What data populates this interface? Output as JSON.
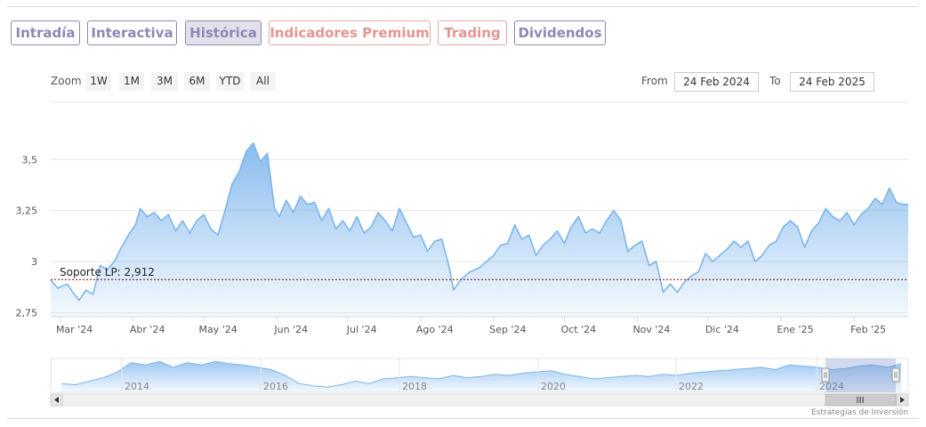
{
  "tabs": [
    {
      "label": "Intradía",
      "style": "normal"
    },
    {
      "label": "Interactiva",
      "style": "normal"
    },
    {
      "label": "Histórica",
      "style": "active"
    },
    {
      "label": "Indicadores Premium",
      "style": "premium"
    },
    {
      "label": "Trading",
      "style": "premium"
    },
    {
      "label": "Dividendos",
      "style": "normal"
    }
  ],
  "range_selector": {
    "zoom_label": "Zoom",
    "buttons": [
      "1W",
      "1M",
      "3M",
      "6M",
      "YTD",
      "All"
    ],
    "from_label": "From",
    "from_value": "24 Feb 2024",
    "to_label": "To",
    "to_value": "24 Feb 2025"
  },
  "colors": {
    "line": "#7cb5ec",
    "area_top": "#7cb5ec",
    "support_line": "#8b0000",
    "tab_border": "#8b86b5",
    "tab_premium": "#e59590"
  },
  "chart_data": {
    "type": "area",
    "title": "",
    "xlabel": "",
    "ylabel": "",
    "ylim": [
      2.73,
      3.78
    ],
    "y_ticks": [
      2.75,
      3,
      3.25,
      3.5
    ],
    "y_tick_labels": [
      "2,75",
      "3",
      "3,25",
      "3,5"
    ],
    "x_range": [
      "2024-02-26",
      "2025-02-24"
    ],
    "x_ticks": [
      {
        "date": "2024-03-01",
        "label": "Mar '24"
      },
      {
        "date": "2024-04-01",
        "label": "Abr '24"
      },
      {
        "date": "2024-05-01",
        "label": "May '24"
      },
      {
        "date": "2024-06-01",
        "label": "Jun '24"
      },
      {
        "date": "2024-07-01",
        "label": "Jul '24"
      },
      {
        "date": "2024-08-01",
        "label": "Ago '24"
      },
      {
        "date": "2024-09-01",
        "label": "Sep '24"
      },
      {
        "date": "2024-10-01",
        "label": "Oct '24"
      },
      {
        "date": "2024-11-01",
        "label": "Nov '24"
      },
      {
        "date": "2024-12-01",
        "label": "Dic '24"
      },
      {
        "date": "2025-01-01",
        "label": "Ene '25"
      },
      {
        "date": "2025-02-01",
        "label": "Feb '25"
      }
    ],
    "grid": true,
    "legend": "none",
    "annotation": {
      "label": "Soporte LP: 2,912",
      "value": 2.912
    },
    "series": [
      {
        "points": [
          [
            "2024-02-26",
            2.91
          ],
          [
            "2024-02-29",
            2.87
          ],
          [
            "2024-03-04",
            2.89
          ],
          [
            "2024-03-07",
            2.84
          ],
          [
            "2024-03-09",
            2.81
          ],
          [
            "2024-03-12",
            2.86
          ],
          [
            "2024-03-15",
            2.84
          ],
          [
            "2024-03-18",
            2.98
          ],
          [
            "2024-03-21",
            2.96
          ],
          [
            "2024-03-24",
            3.0
          ],
          [
            "2024-03-27",
            3.07
          ],
          [
            "2024-03-30",
            3.13
          ],
          [
            "2024-04-02",
            3.18
          ],
          [
            "2024-04-04",
            3.26
          ],
          [
            "2024-04-07",
            3.22
          ],
          [
            "2024-04-10",
            3.24
          ],
          [
            "2024-04-13",
            3.2
          ],
          [
            "2024-04-16",
            3.23
          ],
          [
            "2024-04-19",
            3.15
          ],
          [
            "2024-04-22",
            3.2
          ],
          [
            "2024-04-25",
            3.14
          ],
          [
            "2024-04-28",
            3.2
          ],
          [
            "2024-05-01",
            3.23
          ],
          [
            "2024-05-04",
            3.16
          ],
          [
            "2024-05-07",
            3.13
          ],
          [
            "2024-05-10",
            3.25
          ],
          [
            "2024-05-13",
            3.38
          ],
          [
            "2024-05-16",
            3.44
          ],
          [
            "2024-05-19",
            3.54
          ],
          [
            "2024-05-22",
            3.58
          ],
          [
            "2024-05-25",
            3.49
          ],
          [
            "2024-05-28",
            3.53
          ],
          [
            "2024-05-31",
            3.26
          ],
          [
            "2024-06-02",
            3.22
          ],
          [
            "2024-06-05",
            3.3
          ],
          [
            "2024-06-08",
            3.24
          ],
          [
            "2024-06-11",
            3.32
          ],
          [
            "2024-06-14",
            3.28
          ],
          [
            "2024-06-17",
            3.29
          ],
          [
            "2024-06-20",
            3.2
          ],
          [
            "2024-06-23",
            3.26
          ],
          [
            "2024-06-26",
            3.16
          ],
          [
            "2024-06-29",
            3.2
          ],
          [
            "2024-07-02",
            3.15
          ],
          [
            "2024-07-05",
            3.22
          ],
          [
            "2024-07-08",
            3.14
          ],
          [
            "2024-07-11",
            3.17
          ],
          [
            "2024-07-14",
            3.24
          ],
          [
            "2024-07-17",
            3.2
          ],
          [
            "2024-07-20",
            3.15
          ],
          [
            "2024-07-23",
            3.26
          ],
          [
            "2024-07-26",
            3.19
          ],
          [
            "2024-07-29",
            3.12
          ],
          [
            "2024-08-01",
            3.13
          ],
          [
            "2024-08-04",
            3.05
          ],
          [
            "2024-08-07",
            3.1
          ],
          [
            "2024-08-10",
            3.11
          ],
          [
            "2024-08-13",
            2.98
          ],
          [
            "2024-08-15",
            2.86
          ],
          [
            "2024-08-18",
            2.91
          ],
          [
            "2024-08-22",
            2.95
          ],
          [
            "2024-08-26",
            2.97
          ],
          [
            "2024-08-29",
            3.0
          ],
          [
            "2024-09-01",
            3.03
          ],
          [
            "2024-09-04",
            3.08
          ],
          [
            "2024-09-07",
            3.09
          ],
          [
            "2024-09-10",
            3.18
          ],
          [
            "2024-09-13",
            3.11
          ],
          [
            "2024-09-16",
            3.13
          ],
          [
            "2024-09-19",
            3.03
          ],
          [
            "2024-09-22",
            3.08
          ],
          [
            "2024-09-25",
            3.11
          ],
          [
            "2024-09-28",
            3.15
          ],
          [
            "2024-10-01",
            3.09
          ],
          [
            "2024-10-04",
            3.17
          ],
          [
            "2024-10-07",
            3.22
          ],
          [
            "2024-10-10",
            3.14
          ],
          [
            "2024-10-13",
            3.16
          ],
          [
            "2024-10-16",
            3.14
          ],
          [
            "2024-10-19",
            3.2
          ],
          [
            "2024-10-22",
            3.25
          ],
          [
            "2024-10-25",
            3.2
          ],
          [
            "2024-10-28",
            3.05
          ],
          [
            "2024-10-31",
            3.08
          ],
          [
            "2024-11-03",
            3.1
          ],
          [
            "2024-11-06",
            2.98
          ],
          [
            "2024-11-09",
            3.0
          ],
          [
            "2024-11-12",
            2.85
          ],
          [
            "2024-11-15",
            2.89
          ],
          [
            "2024-11-18",
            2.85
          ],
          [
            "2024-11-21",
            2.9
          ],
          [
            "2024-11-24",
            2.93
          ],
          [
            "2024-11-27",
            2.95
          ],
          [
            "2024-11-30",
            3.04
          ],
          [
            "2024-12-03",
            3.0
          ],
          [
            "2024-12-06",
            3.03
          ],
          [
            "2024-12-09",
            3.06
          ],
          [
            "2024-12-12",
            3.1
          ],
          [
            "2024-12-15",
            3.07
          ],
          [
            "2024-12-18",
            3.1
          ],
          [
            "2024-12-21",
            3.0
          ],
          [
            "2024-12-24",
            3.03
          ],
          [
            "2024-12-27",
            3.08
          ],
          [
            "2024-12-30",
            3.1
          ],
          [
            "2025-01-02",
            3.17
          ],
          [
            "2025-01-05",
            3.2
          ],
          [
            "2025-01-08",
            3.17
          ],
          [
            "2025-01-11",
            3.07
          ],
          [
            "2025-01-14",
            3.15
          ],
          [
            "2025-01-17",
            3.19
          ],
          [
            "2025-01-20",
            3.26
          ],
          [
            "2025-01-23",
            3.22
          ],
          [
            "2025-01-26",
            3.2
          ],
          [
            "2025-01-29",
            3.24
          ],
          [
            "2025-02-01",
            3.18
          ],
          [
            "2025-02-04",
            3.23
          ],
          [
            "2025-02-07",
            3.26
          ],
          [
            "2025-02-10",
            3.31
          ],
          [
            "2025-02-13",
            3.28
          ],
          [
            "2025-02-16",
            3.36
          ],
          [
            "2025-02-19",
            3.29
          ],
          [
            "2025-02-22",
            3.28
          ],
          [
            "2025-02-24",
            3.28
          ]
        ]
      }
    ],
    "navigator": {
      "type": "area",
      "x_tick_labels": [
        "2014",
        "2016",
        "2018",
        "2020",
        "2022",
        "2024"
      ],
      "selected_range": [
        "2024-02-24",
        "2025-02-24"
      ],
      "values": [
        2.6,
        2.55,
        2.7,
        2.85,
        3.1,
        3.5,
        3.4,
        3.55,
        3.3,
        3.5,
        3.4,
        3.55,
        3.45,
        3.4,
        3.3,
        3.2,
        2.95,
        2.6,
        2.5,
        2.45,
        2.55,
        2.7,
        2.6,
        2.8,
        2.85,
        2.9,
        2.85,
        2.8,
        2.95,
        2.85,
        2.9,
        3.0,
        2.95,
        3.05,
        3.1,
        3.15,
        3.0,
        2.9,
        2.8,
        2.85,
        2.9,
        2.95,
        2.9,
        3.0,
        2.95,
        3.05,
        3.1,
        3.15,
        3.2,
        3.25,
        3.3,
        3.2,
        3.4,
        3.35,
        3.3,
        3.2,
        3.25,
        3.35,
        3.4,
        3.3,
        3.45
      ]
    }
  },
  "credits": "Estrategias de Inversión"
}
